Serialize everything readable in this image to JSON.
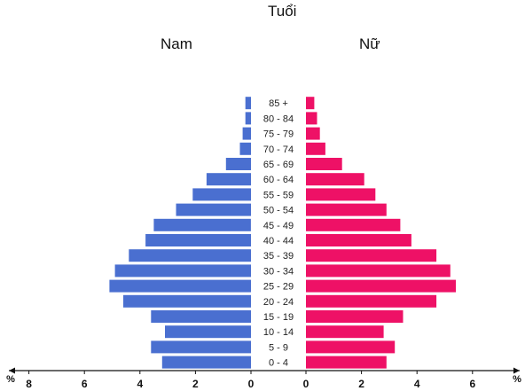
{
  "chart_data": {
    "type": "bar",
    "orientation": "horizontal-pyramid",
    "title": "Tuổi",
    "left_label": "Nam",
    "right_label": "Nữ",
    "axis_unit": "%",
    "categories": [
      "0 - 4",
      "5 - 9",
      "10 - 14",
      "15 - 19",
      "20 - 24",
      "25 - 29",
      "30 - 34",
      "35 - 39",
      "40 - 44",
      "45 - 49",
      "50 - 54",
      "55 - 59",
      "60 - 64",
      "65 - 69",
      "70 - 74",
      "75 - 79",
      "80 - 84",
      "85 +"
    ],
    "series": [
      {
        "name": "Nam",
        "values": [
          3.2,
          3.6,
          3.1,
          3.6,
          4.6,
          5.1,
          4.9,
          4.4,
          3.8,
          3.5,
          2.7,
          2.1,
          1.6,
          0.9,
          0.4,
          0.3,
          0.2,
          0.2
        ]
      },
      {
        "name": "Nữ",
        "values": [
          2.9,
          3.2,
          2.8,
          3.5,
          4.7,
          5.4,
          5.2,
          4.7,
          3.8,
          3.4,
          2.9,
          2.5,
          2.1,
          1.3,
          0.7,
          0.5,
          0.4,
          0.3
        ]
      }
    ],
    "left_ticks": [
      "8",
      "6",
      "4",
      "2",
      "0"
    ],
    "right_ticks": [
      "0",
      "2",
      "4",
      "6",
      "8"
    ],
    "xlim": [
      0,
      8
    ],
    "grid": false,
    "colors": {
      "Nam": "#4a6fd0",
      "Nữ": "#ee1166"
    }
  }
}
